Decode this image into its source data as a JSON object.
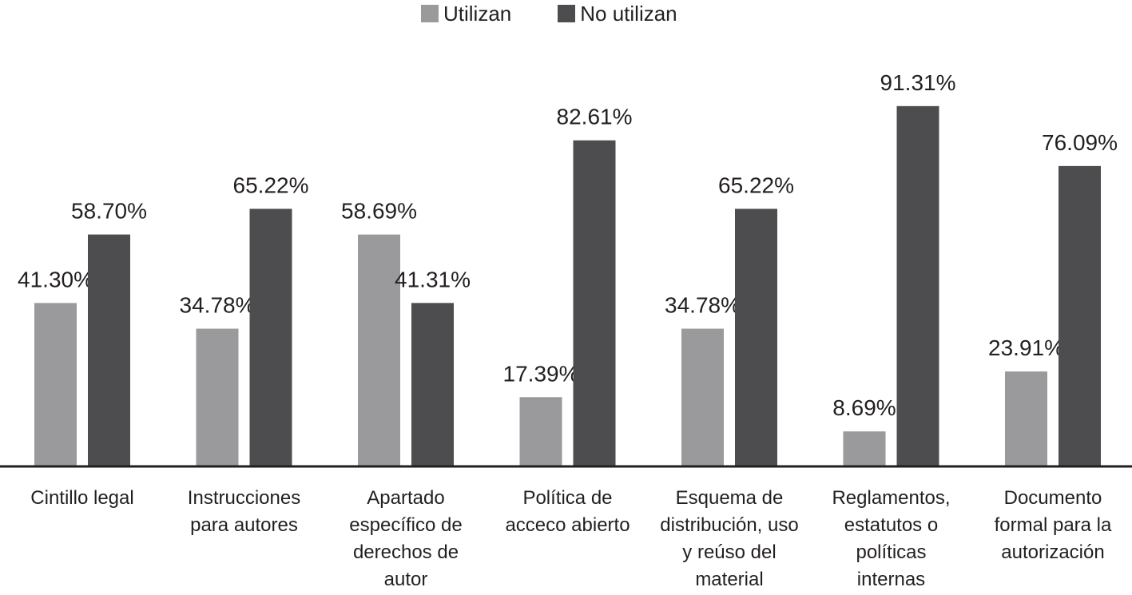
{
  "colors": {
    "utilizan": "#9a9a9c",
    "no_utilizan": "#4d4d4f",
    "axis": "#231f20"
  },
  "chart_data": {
    "type": "bar",
    "categories": [
      [
        "Cintillo legal"
      ],
      [
        "Instrucciones",
        "para autores"
      ],
      [
        "Apartado",
        "específico de",
        "derechos de",
        "autor"
      ],
      [
        "Política de",
        "acceco abierto"
      ],
      [
        "Esquema de",
        "distribución, uso",
        "y reúso del",
        "material"
      ],
      [
        "Reglamentos,",
        "estatutos o",
        "políticas",
        "internas"
      ],
      [
        "Documento",
        "formal para la",
        "autorización"
      ]
    ],
    "series": [
      {
        "name": "Utilizan",
        "values": [
          41.3,
          34.78,
          58.69,
          17.39,
          34.78,
          8.69,
          23.91
        ],
        "labels": [
          "41.30%",
          "34.78%",
          "58.69%",
          "17.39%",
          "34.78%",
          "8.69%",
          "23.91%"
        ]
      },
      {
        "name": "No utilizan",
        "values": [
          58.7,
          65.22,
          41.31,
          82.61,
          65.22,
          91.31,
          76.09
        ],
        "labels": [
          "58.70%",
          "65.22%",
          "41.31%",
          "82.61%",
          "65.22%",
          "91.31%",
          "76.09%"
        ]
      }
    ],
    "ylim": [
      0,
      100
    ],
    "grid": false,
    "legend_position": "top-center"
  }
}
